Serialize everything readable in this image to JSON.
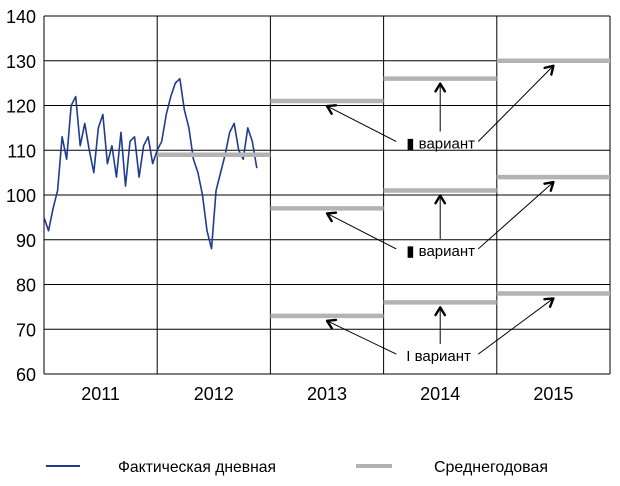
{
  "chart_data": {
    "type": "line",
    "title": "",
    "xlabel": "",
    "ylabel": "",
    "ylim": [
      60,
      140
    ],
    "y_ticks": [
      "60",
      "70",
      "80",
      "90",
      "100",
      "110",
      "120",
      "130",
      "140"
    ],
    "x_ticks": [
      "2011",
      "2012",
      "2013",
      "2014",
      "2015"
    ],
    "grid": true,
    "colors": {
      "daily": "#1f3c8f",
      "annual": "#b3b3b3",
      "grid": "#000000"
    },
    "series": [
      {
        "name": "Фактическая дневная",
        "kind": "daily",
        "x_year_fraction": [
          2011.0,
          2011.04,
          2011.08,
          2011.12,
          2011.16,
          2011.2,
          2011.24,
          2011.28,
          2011.32,
          2011.36,
          2011.4,
          2011.44,
          2011.48,
          2011.52,
          2011.56,
          2011.6,
          2011.64,
          2011.68,
          2011.72,
          2011.76,
          2011.8,
          2011.84,
          2011.88,
          2011.92,
          2011.96,
          2012.0,
          2012.04,
          2012.08,
          2012.12,
          2012.16,
          2012.2,
          2012.24,
          2012.28,
          2012.32,
          2012.36,
          2012.4,
          2012.44,
          2012.48,
          2012.52,
          2012.56,
          2012.6,
          2012.64,
          2012.68,
          2012.72,
          2012.76,
          2012.8,
          2012.84,
          2012.88
        ],
        "values": [
          95,
          92,
          97,
          101,
          113,
          108,
          120,
          122,
          111,
          116,
          110,
          105,
          115,
          118,
          107,
          111,
          104,
          114,
          102,
          112,
          113,
          104,
          111,
          113,
          107,
          110,
          112,
          118,
          122,
          125,
          126,
          119,
          115,
          108,
          105,
          100,
          92,
          88,
          101,
          105,
          109,
          114,
          116,
          110,
          108,
          115,
          112,
          106
        ]
      },
      {
        "name": "Среднегодовая",
        "kind": "annual",
        "segments": [
          {
            "from": 2012.0,
            "to": 2013.0,
            "value": 109
          },
          {
            "from": 2013.0,
            "to": 2014.0,
            "value": 121,
            "variant": "III"
          },
          {
            "from": 2014.0,
            "to": 2015.0,
            "value": 126,
            "variant": "III"
          },
          {
            "from": 2015.0,
            "to": 2016.0,
            "value": 130,
            "variant": "III"
          },
          {
            "from": 2013.0,
            "to": 2014.0,
            "value": 97,
            "variant": "II"
          },
          {
            "from": 2014.0,
            "to": 2015.0,
            "value": 101,
            "variant": "II"
          },
          {
            "from": 2015.0,
            "to": 2016.0,
            "value": 104,
            "variant": "II"
          },
          {
            "from": 2013.0,
            "to": 2014.0,
            "value": 73,
            "variant": "I"
          },
          {
            "from": 2014.0,
            "to": 2015.0,
            "value": 76,
            "variant": "I"
          },
          {
            "from": 2015.0,
            "to": 2016.0,
            "value": 78,
            "variant": "I"
          }
        ]
      }
    ],
    "annotations": [
      {
        "id": "III",
        "text": "▮ вариант",
        "y_value": 111.5
      },
      {
        "id": "II",
        "text": "▮ вариант",
        "y_value": 87.5
      },
      {
        "id": "I",
        "text": "I вариант",
        "y_value": 64
      }
    ]
  },
  "legend": {
    "daily_label": "Фактическая дневная",
    "annual_label": "Среднегодовая"
  }
}
